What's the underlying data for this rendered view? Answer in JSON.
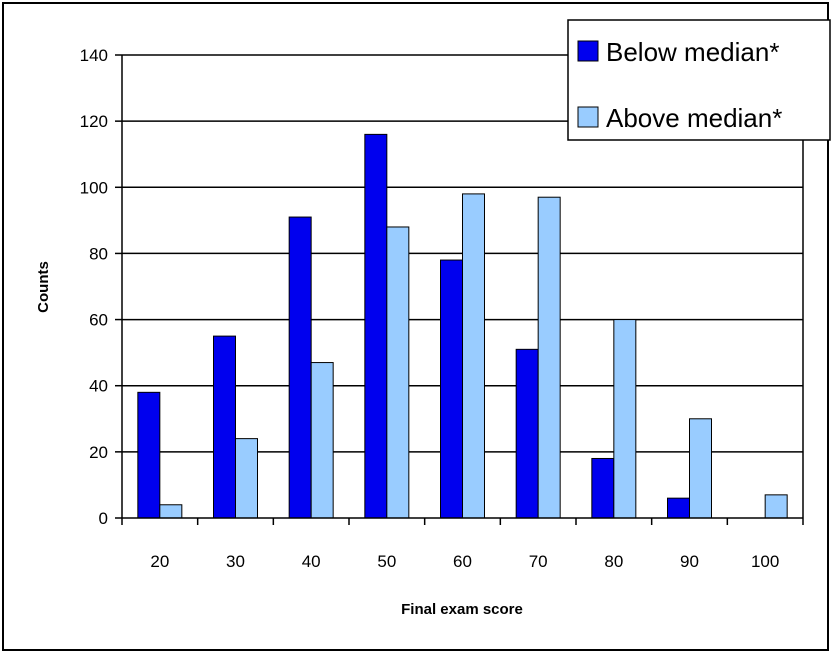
{
  "chart_data": {
    "type": "bar",
    "title": "",
    "xlabel": "Final exam score",
    "ylabel": "Counts",
    "categories": [
      "20",
      "30",
      "40",
      "50",
      "60",
      "70",
      "80",
      "90",
      "100"
    ],
    "yticks": [
      "0",
      "20",
      "40",
      "60",
      "80",
      "100",
      "120",
      "140"
    ],
    "ylim": [
      0,
      140
    ],
    "grid": true,
    "legend_position": "top-right",
    "series": [
      {
        "name": "Below median*",
        "color": "#0000ee",
        "values": [
          38,
          55,
          91,
          116,
          78,
          51,
          18,
          6,
          0
        ]
      },
      {
        "name": "Above median*",
        "color": "#99ccff",
        "values": [
          4,
          24,
          47,
          88,
          98,
          97,
          60,
          30,
          7
        ]
      }
    ]
  }
}
